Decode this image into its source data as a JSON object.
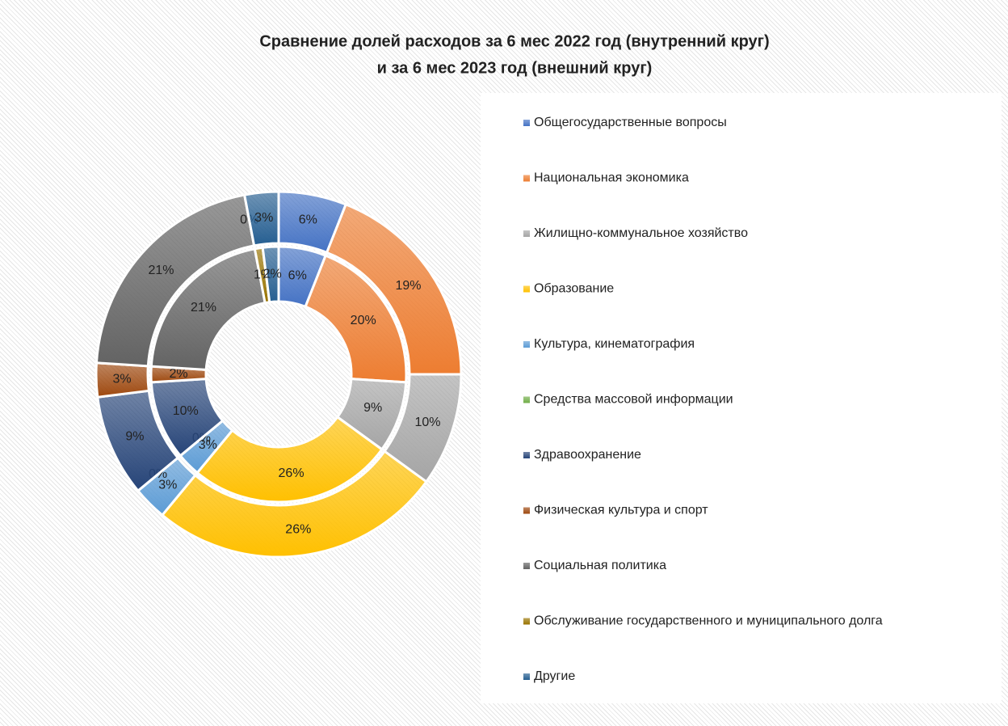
{
  "chart_data": {
    "type": "doughnut",
    "title": [
      "Сравнение долей расходов за 6 мес 2022 год (внутренний круг)",
      "и за 6 мес 2023 год (внешний круг)"
    ],
    "categories": [
      "Общегосударственные вопросы",
      "Национальная экономика",
      "Жилищно-коммунальное хозяйство",
      "Образование",
      "Культура, кинематография",
      "Средства массовой информации",
      "Здравоохранение",
      "Физическая культура и спорт",
      "Социальная политика",
      "Обслуживание государственного и муниципального долга",
      "Другие"
    ],
    "colors": [
      "#4472c4",
      "#ed7d31",
      "#a5a5a5",
      "#ffc000",
      "#5b9bd5",
      "#70ad47",
      "#264478",
      "#9e480e",
      "#636363",
      "#997300",
      "#255e91"
    ],
    "series": [
      {
        "values": [
          6,
          20,
          9,
          26,
          3,
          0,
          10,
          2,
          21,
          1,
          2
        ],
        "value_labels": [
          "6%",
          "20%",
          "9%",
          "26%",
          "3%",
          "0%",
          "10%",
          "2%",
          "21%",
          "1%",
          "2%"
        ]
      },
      {
        "values": [
          6,
          19,
          10,
          26,
          3,
          0,
          9,
          3,
          21,
          0,
          3
        ],
        "value_labels": [
          "6%",
          "19%",
          "10%",
          "26%",
          "3%",
          "0%",
          "9%",
          "3%",
          "21%",
          "0%",
          "3%"
        ]
      }
    ],
    "legend": "right"
  }
}
